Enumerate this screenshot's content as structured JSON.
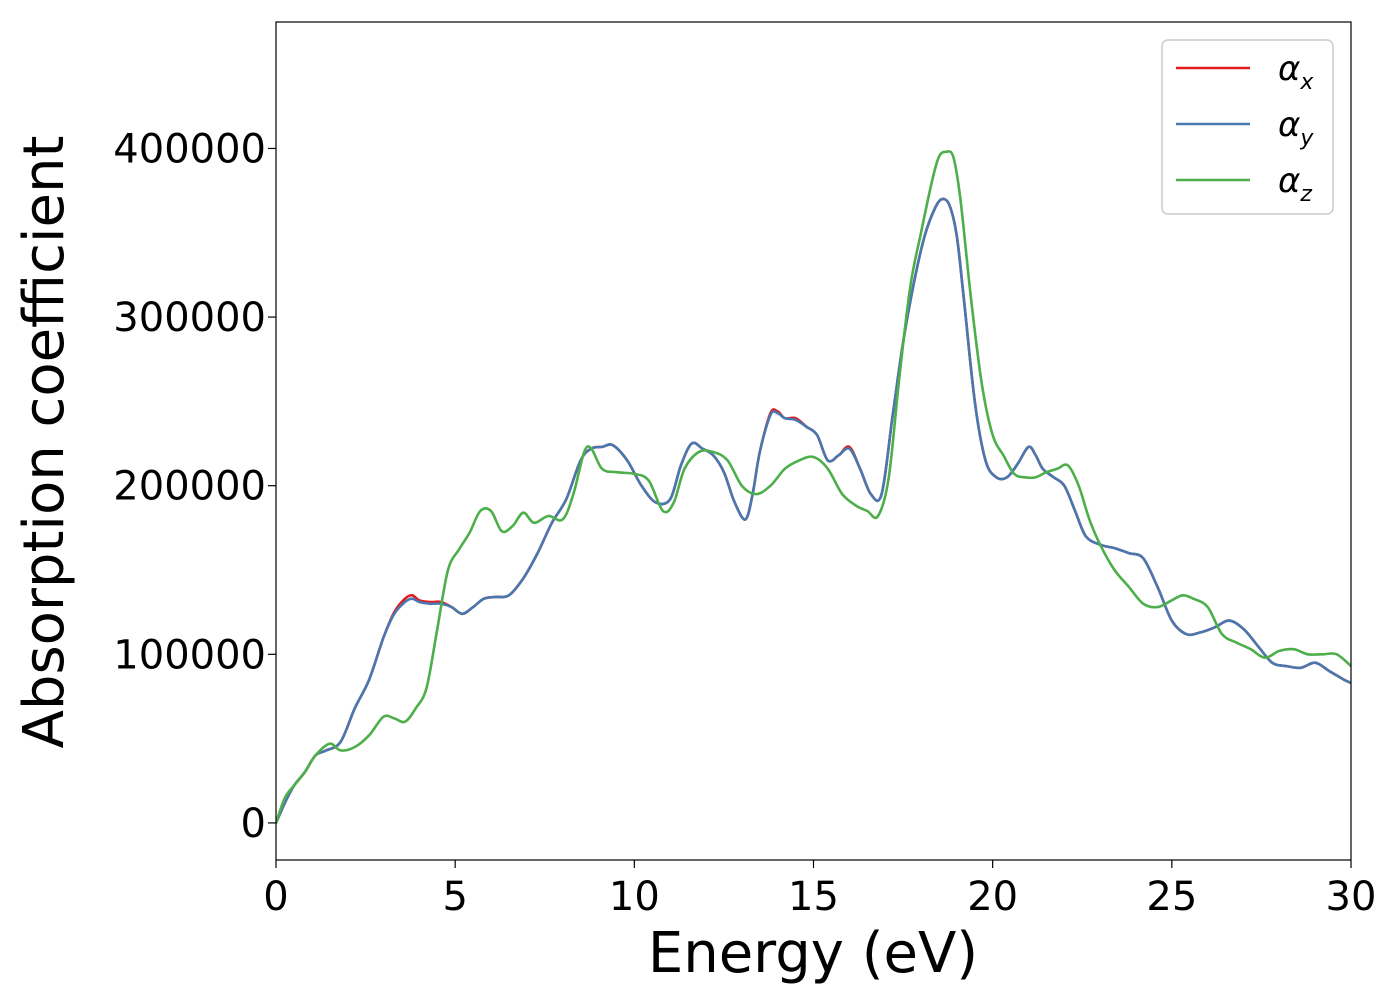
{
  "chart_data": {
    "type": "line",
    "title": "",
    "xlabel": "Energy (eV)",
    "ylabel": "Absorption coefficient",
    "xlim": [
      0,
      30
    ],
    "ylim": [
      -22000,
      475000
    ],
    "xticks": [
      0,
      5,
      10,
      15,
      20,
      25,
      30
    ],
    "xtick_labels": [
      "0",
      "5",
      "10",
      "15",
      "20",
      "25",
      "30"
    ],
    "yticks": [
      0,
      100000,
      200000,
      300000,
      400000
    ],
    "ytick_labels": [
      "0",
      "100000",
      "200000",
      "300000",
      "400000"
    ],
    "grid": false,
    "legend_position": "top-right",
    "series": [
      {
        "name": "α",
        "subscript": "x",
        "color": "#e41a1c",
        "x": [
          0,
          0.25,
          0.5,
          0.8,
          1.1,
          1.4,
          1.8,
          2.2,
          2.6,
          3.0,
          3.3,
          3.6,
          3.8,
          4.0,
          4.3,
          4.6,
          4.9,
          5.2,
          5.5,
          5.8,
          6.1,
          6.5,
          6.9,
          7.3,
          7.7,
          8.1,
          8.5,
          8.8,
          9.1,
          9.4,
          9.8,
          10.2,
          10.6,
          11.0,
          11.3,
          11.6,
          11.9,
          12.2,
          12.5,
          12.8,
          13.1,
          13.3,
          13.5,
          13.8,
          14.0,
          14.2,
          14.5,
          14.8,
          15.1,
          15.4,
          15.7,
          16.0,
          16.3,
          16.6,
          16.9,
          17.2,
          17.5,
          17.8,
          18.1,
          18.4,
          18.6,
          18.8,
          19.0,
          19.2,
          19.5,
          19.8,
          20.1,
          20.4,
          20.7,
          21.0,
          21.2,
          21.4,
          21.7,
          22.0,
          22.3,
          22.6,
          23.0,
          23.4,
          23.8,
          24.2,
          24.6,
          25.0,
          25.4,
          25.8,
          26.2,
          26.6,
          27.0,
          27.4,
          27.8,
          28.2,
          28.6,
          29.0,
          29.4,
          29.8,
          30.0
        ],
        "y": [
          0,
          12000,
          22000,
          30000,
          40000,
          43000,
          48000,
          68000,
          85000,
          110000,
          125000,
          133000,
          135000,
          132000,
          131000,
          131000,
          128000,
          124000,
          128000,
          133000,
          134000,
          135000,
          145000,
          160000,
          178000,
          192000,
          215000,
          222000,
          223000,
          224000,
          215000,
          200000,
          190000,
          192000,
          212000,
          225000,
          222000,
          218000,
          208000,
          190000,
          180000,
          195000,
          220000,
          243000,
          244000,
          240000,
          240000,
          235000,
          230000,
          215000,
          218000,
          223000,
          210000,
          195000,
          195000,
          240000,
          285000,
          320000,
          348000,
          365000,
          370000,
          366000,
          348000,
          310000,
          250000,
          215000,
          205000,
          205000,
          213000,
          223000,
          218000,
          210000,
          205000,
          200000,
          185000,
          170000,
          165000,
          163000,
          160000,
          157000,
          140000,
          120000,
          112000,
          113000,
          116000,
          120000,
          115000,
          105000,
          95000,
          93000,
          92000,
          95000,
          90000,
          85000,
          83000
        ]
      },
      {
        "name": "α",
        "subscript": "y",
        "color": "#4878b0",
        "x": [
          0,
          0.25,
          0.5,
          0.8,
          1.1,
          1.4,
          1.8,
          2.2,
          2.6,
          3.0,
          3.3,
          3.6,
          3.8,
          4.0,
          4.3,
          4.6,
          4.9,
          5.2,
          5.5,
          5.8,
          6.1,
          6.5,
          6.9,
          7.3,
          7.7,
          8.1,
          8.5,
          8.8,
          9.1,
          9.4,
          9.8,
          10.2,
          10.6,
          11.0,
          11.3,
          11.6,
          11.9,
          12.2,
          12.5,
          12.8,
          13.1,
          13.3,
          13.5,
          13.8,
          14.0,
          14.2,
          14.5,
          14.8,
          15.1,
          15.4,
          15.7,
          16.0,
          16.3,
          16.6,
          16.9,
          17.2,
          17.5,
          17.8,
          18.1,
          18.4,
          18.6,
          18.8,
          19.0,
          19.2,
          19.5,
          19.8,
          20.1,
          20.4,
          20.7,
          21.0,
          21.2,
          21.4,
          21.7,
          22.0,
          22.3,
          22.6,
          23.0,
          23.4,
          23.8,
          24.2,
          24.6,
          25.0,
          25.4,
          25.8,
          26.2,
          26.6,
          27.0,
          27.4,
          27.8,
          28.2,
          28.6,
          29.0,
          29.4,
          29.8,
          30.0
        ],
        "y": [
          0,
          12000,
          22000,
          30000,
          40000,
          43000,
          48000,
          68000,
          85000,
          110000,
          124000,
          131000,
          133000,
          131000,
          130000,
          130000,
          128000,
          124000,
          128000,
          133000,
          134000,
          135000,
          145000,
          160000,
          178000,
          192000,
          215000,
          222000,
          223000,
          224000,
          215000,
          200000,
          190000,
          192000,
          212000,
          225000,
          222000,
          218000,
          208000,
          190000,
          180000,
          195000,
          220000,
          242000,
          243000,
          240000,
          239000,
          235000,
          230000,
          215000,
          218000,
          222000,
          210000,
          195000,
          195000,
          240000,
          285000,
          320000,
          348000,
          365000,
          370000,
          366000,
          348000,
          310000,
          250000,
          215000,
          205000,
          205000,
          213000,
          223000,
          218000,
          210000,
          205000,
          200000,
          185000,
          170000,
          165000,
          163000,
          160000,
          157000,
          140000,
          120000,
          112000,
          113000,
          116000,
          120000,
          115000,
          105000,
          95000,
          93000,
          92000,
          95000,
          90000,
          85000,
          83000
        ]
      },
      {
        "name": "α",
        "subscript": "z",
        "color": "#4daf4a",
        "x": [
          0,
          0.25,
          0.5,
          0.8,
          1.1,
          1.5,
          1.8,
          2.2,
          2.6,
          3.0,
          3.3,
          3.6,
          3.9,
          4.2,
          4.5,
          4.8,
          5.1,
          5.4,
          5.7,
          6.0,
          6.3,
          6.6,
          6.9,
          7.2,
          7.6,
          8.0,
          8.3,
          8.6,
          8.8,
          9.1,
          9.5,
          10.0,
          10.4,
          10.8,
          11.1,
          11.4,
          11.8,
          12.2,
          12.6,
          13.0,
          13.4,
          13.8,
          14.2,
          14.6,
          15.0,
          15.4,
          15.8,
          16.2,
          16.5,
          16.8,
          17.1,
          17.4,
          17.7,
          18.0,
          18.3,
          18.5,
          18.7,
          18.9,
          19.1,
          19.4,
          19.7,
          20.0,
          20.3,
          20.6,
          20.9,
          21.2,
          21.5,
          21.8,
          22.1,
          22.4,
          22.7,
          23.0,
          23.4,
          23.8,
          24.2,
          24.6,
          25.0,
          25.3,
          25.6,
          26.0,
          26.4,
          26.8,
          27.2,
          27.6,
          28.0,
          28.4,
          28.8,
          29.2,
          29.6,
          30.0
        ],
        "y": [
          0,
          15000,
          22000,
          30000,
          40000,
          47000,
          43000,
          45000,
          52000,
          63000,
          62000,
          60000,
          68000,
          80000,
          115000,
          150000,
          162000,
          172000,
          185000,
          185000,
          173000,
          176000,
          184000,
          178000,
          182000,
          180000,
          195000,
          220000,
          222000,
          210000,
          208000,
          207000,
          203000,
          185000,
          190000,
          210000,
          220000,
          220000,
          215000,
          200000,
          195000,
          200000,
          210000,
          215000,
          217000,
          210000,
          195000,
          188000,
          185000,
          182000,
          205000,
          265000,
          318000,
          350000,
          380000,
          395000,
          398000,
          395000,
          370000,
          310000,
          260000,
          230000,
          218000,
          207000,
          205000,
          205000,
          208000,
          210000,
          212000,
          200000,
          180000,
          165000,
          150000,
          140000,
          130000,
          128000,
          132000,
          135000,
          133000,
          128000,
          112000,
          107000,
          103000,
          98000,
          102000,
          103000,
          100000,
          100000,
          100000,
          93000
        ]
      }
    ]
  }
}
